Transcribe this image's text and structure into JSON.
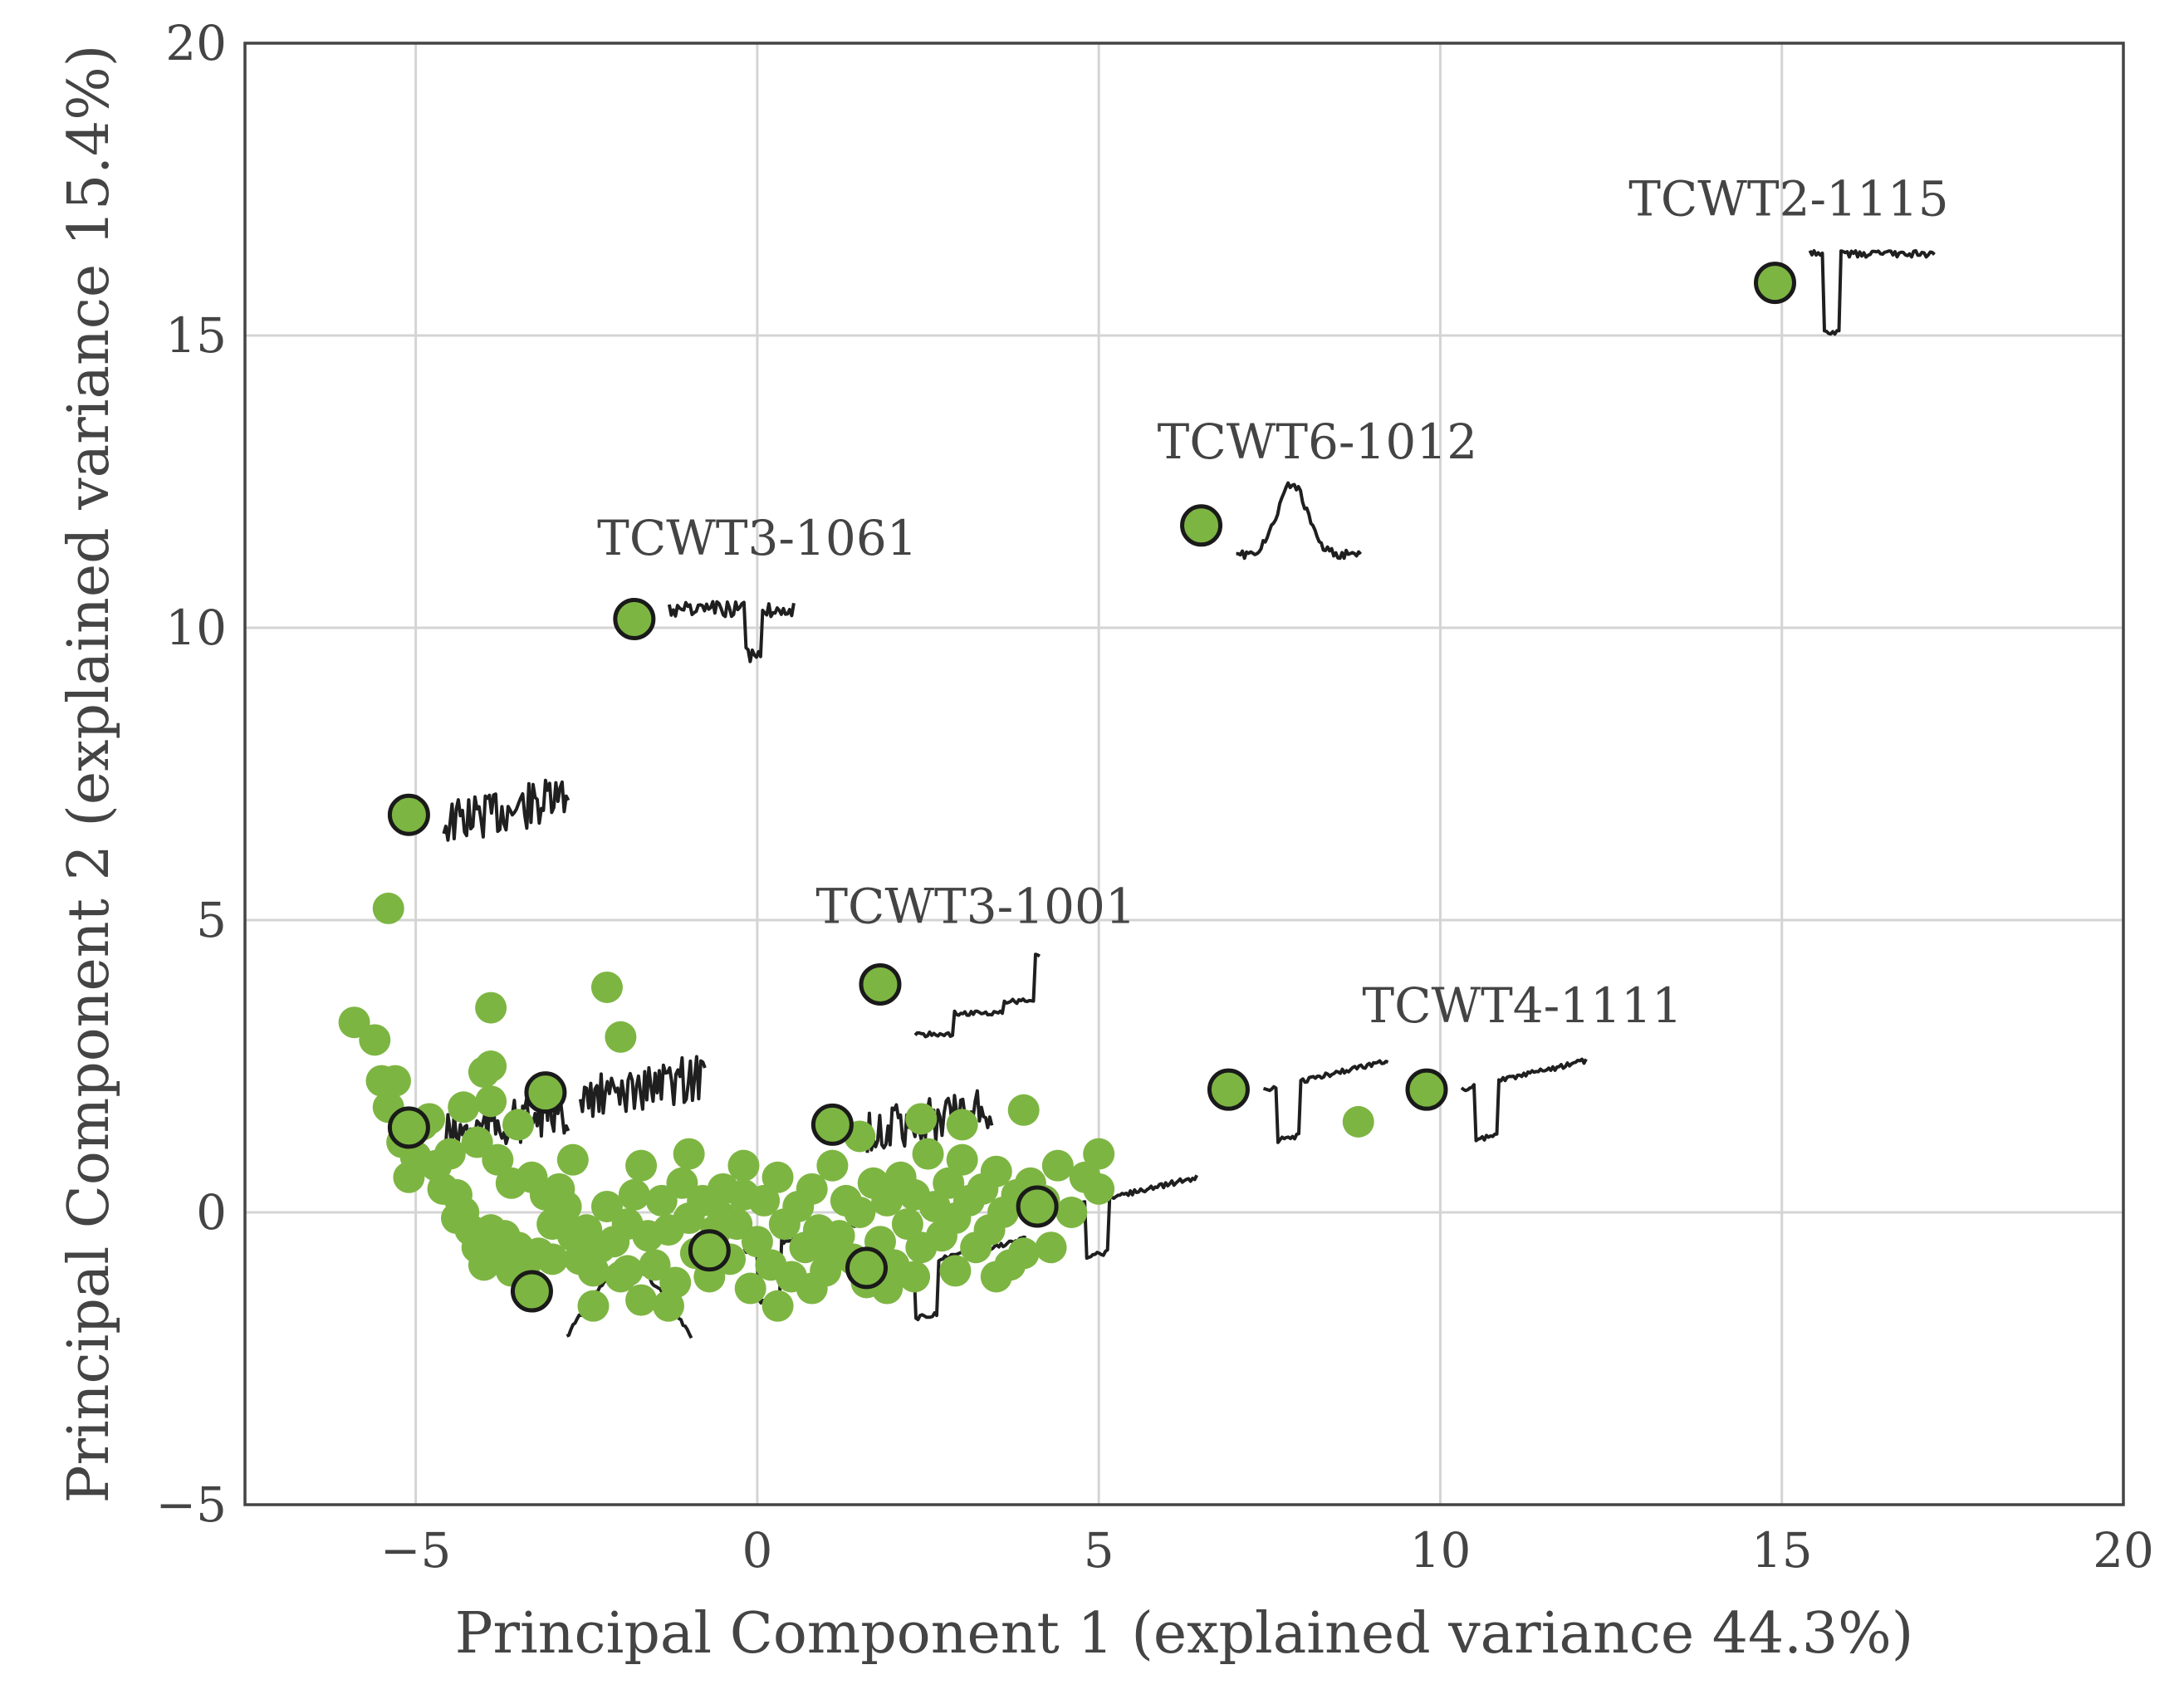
{
  "chart_data": {
    "type": "scatter",
    "title": "",
    "xlabel": "Principal Component 1 (explained variance 44.3%)",
    "ylabel": "Principal Component 2 (explained variance 15.4%)",
    "xlim": [
      -7.5,
      20
    ],
    "ylim": [
      -5,
      20
    ],
    "xticks": [
      -5,
      0,
      5,
      10,
      15,
      20
    ],
    "yticks": [
      -5,
      0,
      5,
      10,
      15,
      20
    ],
    "xtick_labels": [
      "−5",
      "0",
      "5",
      "10",
      "15",
      "20"
    ],
    "ytick_labels": [
      "−5",
      "0",
      "5",
      "10",
      "15",
      "20"
    ],
    "grid": true,
    "legend": "none",
    "colors": {
      "points": "#7db542",
      "outline": "#1a1a1a",
      "trace": "#1f1f1f",
      "grid": "#d4d4d4",
      "frame": "#444444",
      "text": "#444444"
    },
    "series": [
      {
        "values": [
          [
            -5.9,
            3.25
          ],
          [
            -5.6,
            2.95
          ],
          [
            -5.5,
            2.25
          ],
          [
            -5.3,
            2.25
          ],
          [
            -5.4,
            1.8
          ],
          [
            -5.2,
            1.2
          ],
          [
            -5.0,
            0.95
          ],
          [
            -4.9,
            1.5
          ],
          [
            -4.7,
            0.8
          ],
          [
            -4.6,
            0.4
          ],
          [
            -4.5,
            1.0
          ],
          [
            -4.4,
            0.3
          ],
          [
            -4.3,
            0.0
          ],
          [
            -4.2,
            -0.3
          ],
          [
            -4.1,
            -0.6
          ],
          [
            -4.0,
            -0.9
          ],
          [
            -3.9,
            -0.3
          ],
          [
            -3.8,
            -0.7
          ],
          [
            -3.7,
            -0.4
          ],
          [
            -3.6,
            -1.0
          ],
          [
            -3.5,
            -0.6
          ],
          [
            -3.4,
            -0.9
          ],
          [
            -3.2,
            -0.7
          ],
          [
            -3.0,
            -0.8
          ],
          [
            -4.0,
            2.4
          ],
          [
            -3.9,
            1.9
          ],
          [
            -4.1,
            1.2
          ],
          [
            -3.8,
            0.9
          ],
          [
            -3.5,
            1.5
          ],
          [
            -3.3,
            0.6
          ],
          [
            -3.1,
            0.3
          ],
          [
            -3.0,
            -0.2
          ],
          [
            -2.9,
            0.4
          ],
          [
            -2.8,
            0.1
          ],
          [
            -2.7,
            -0.4
          ],
          [
            -2.6,
            -0.8
          ],
          [
            -2.5,
            -0.3
          ],
          [
            -2.4,
            -1.0
          ],
          [
            -2.3,
            -0.6
          ],
          [
            -2.2,
            0.1
          ],
          [
            -2.1,
            -0.5
          ],
          [
            -2.0,
            -1.1
          ],
          [
            -1.9,
            -0.2
          ],
          [
            -1.8,
            0.3
          ],
          [
            -1.7,
            0.8
          ],
          [
            -1.6,
            -0.4
          ],
          [
            -1.5,
            -0.9
          ],
          [
            -1.4,
            0.2
          ],
          [
            -1.3,
            -0.3
          ],
          [
            -1.2,
            -1.2
          ],
          [
            -1.1,
            0.5
          ],
          [
            -1.0,
            -0.1
          ],
          [
            -0.9,
            -0.7
          ],
          [
            -0.8,
            0.2
          ],
          [
            -0.7,
            -1.1
          ],
          [
            -0.6,
            -0.3
          ],
          [
            -0.5,
            0.4
          ],
          [
            -0.4,
            -0.8
          ],
          [
            -0.3,
            -0.2
          ],
          [
            -0.2,
            0.3
          ],
          [
            -0.1,
            -1.3
          ],
          [
            0.0,
            -0.5
          ],
          [
            0.1,
            0.2
          ],
          [
            0.2,
            -0.9
          ],
          [
            0.3,
            0.6
          ],
          [
            0.4,
            -0.2
          ],
          [
            0.5,
            -1.1
          ],
          [
            0.6,
            0.1
          ],
          [
            0.7,
            -0.6
          ],
          [
            0.8,
            0.4
          ],
          [
            0.9,
            -0.3
          ],
          [
            1.0,
            -1.0
          ],
          [
            1.1,
            0.8
          ],
          [
            1.2,
            -0.4
          ],
          [
            1.3,
            0.2
          ],
          [
            1.4,
            -0.8
          ],
          [
            1.5,
            0.0
          ],
          [
            1.6,
            -1.2
          ],
          [
            1.7,
            0.5
          ],
          [
            1.8,
            -0.5
          ],
          [
            1.9,
            0.2
          ],
          [
            2.0,
            -0.9
          ],
          [
            2.1,
            0.6
          ],
          [
            2.2,
            -0.2
          ],
          [
            2.3,
            0.3
          ],
          [
            2.4,
            -0.6
          ],
          [
            2.5,
            1.0
          ],
          [
            2.6,
            0.1
          ],
          [
            2.7,
            -0.4
          ],
          [
            2.8,
            0.5
          ],
          [
            2.9,
            -0.1
          ],
          [
            3.0,
            0.9
          ],
          [
            3.1,
            0.2
          ],
          [
            3.2,
            -0.6
          ],
          [
            3.3,
            0.4
          ],
          [
            3.4,
            -0.3
          ],
          [
            3.5,
            0.7
          ],
          [
            3.6,
            0.0
          ],
          [
            3.7,
            -0.9
          ],
          [
            3.8,
            0.3
          ],
          [
            3.9,
            1.75
          ],
          [
            4.0,
            0.5
          ],
          [
            4.2,
            0.2
          ],
          [
            4.4,
            0.8
          ],
          [
            4.6,
            0.0
          ],
          [
            4.8,
            0.6
          ],
          [
            5.0,
            0.4
          ],
          [
            5.0,
            1.0
          ],
          [
            -2.2,
            3.85
          ],
          [
            -2.0,
            3.0
          ],
          [
            -3.9,
            3.5
          ],
          [
            -3.9,
            2.5
          ],
          [
            -5.4,
            5.2
          ],
          [
            -4.3,
            1.8
          ],
          [
            -2.4,
            -1.6
          ],
          [
            -1.3,
            -1.6
          ],
          [
            0.3,
            -1.6
          ],
          [
            1.9,
            -1.3
          ],
          [
            3.5,
            -1.1
          ],
          [
            8.8,
            1.55
          ],
          [
            -1.0,
            1.0
          ],
          [
            -0.2,
            0.8
          ],
          [
            1.5,
            1.3
          ],
          [
            3.0,
            1.5
          ],
          [
            2.4,
            1.6
          ],
          [
            -3.6,
            0.5
          ],
          [
            -2.7,
            0.9
          ],
          [
            -1.7,
            -1.5
          ],
          [
            0.8,
            -1.3
          ],
          [
            2.9,
            -1.0
          ],
          [
            4.3,
            -0.6
          ],
          [
            -4.4,
            -0.1
          ],
          [
            -3.3,
            -1.3
          ],
          [
            -1.9,
            -1.0
          ],
          [
            -0.5,
            -0.1
          ],
          [
            1.1,
            -0.7
          ],
          [
            2.3,
            -1.1
          ],
          [
            3.9,
            -0.7
          ],
          [
            -5.1,
            0.6
          ],
          [
            -4.8,
            1.6
          ]
        ]
      },
      {
        "values": [
          [
            -5.1,
            6.8
          ],
          [
            -5.1,
            1.45
          ],
          [
            -3.1,
            2.05
          ],
          [
            -3.3,
            -1.35
          ],
          [
            -1.8,
            10.15
          ],
          [
            -0.7,
            -0.65
          ],
          [
            1.1,
            1.5
          ],
          [
            1.6,
            -0.95
          ],
          [
            1.8,
            3.9
          ],
          [
            4.1,
            0.1
          ],
          [
            6.5,
            11.75
          ],
          [
            6.9,
            2.1
          ],
          [
            9.8,
            2.1
          ],
          [
            14.9,
            15.9
          ]
        ]
      }
    ]
  },
  "annotations": [
    {
      "text": "TCWT2-1115",
      "x": 15.1,
      "y": 17.05
    },
    {
      "text": "TCWT6-1012",
      "x": 8.2,
      "y": 12.9
    },
    {
      "text": "TCWT3-1061",
      "x": 0.0,
      "y": 11.25
    },
    {
      "text": "TCWT3-1001",
      "x": 3.2,
      "y": 4.95
    },
    {
      "text": "TCWT4-1111",
      "x": 11.2,
      "y": 3.25
    }
  ]
}
